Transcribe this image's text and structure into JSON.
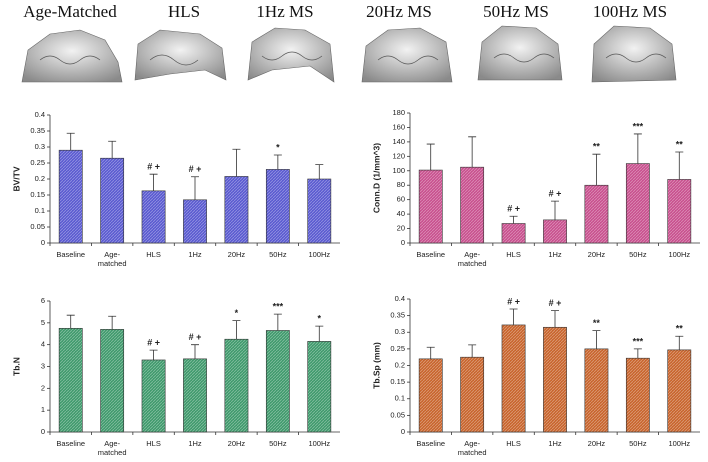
{
  "header": {
    "labels": [
      "Age-Matched",
      "HLS",
      "1Hz MS",
      "20Hz MS",
      "50Hz MS",
      "100Hz MS"
    ]
  },
  "chart_data": [
    {
      "type": "bar",
      "y_label": "BV/TV",
      "color": "#5a5ad0",
      "categories": [
        "Baseline",
        "Age-\nmatched",
        "HLS",
        "1Hz",
        "20Hz",
        "50Hz",
        "100Hz"
      ],
      "values": [
        0.29,
        0.265,
        0.163,
        0.135,
        0.208,
        0.23,
        0.2
      ],
      "errors": [
        0.053,
        0.053,
        0.052,
        0.072,
        0.085,
        0.045,
        0.045
      ],
      "annotations": [
        {
          "category": "HLS",
          "text": "# +"
        },
        {
          "category": "1Hz",
          "text": "# +"
        },
        {
          "category": "50Hz",
          "text": "*"
        }
      ],
      "ylim": [
        0,
        0.4
      ],
      "yticks": [
        0,
        0.05,
        0.1,
        0.15,
        0.2,
        0.25,
        0.3,
        0.35,
        0.4
      ]
    },
    {
      "type": "bar",
      "y_label": "Conn.D (1/mm^3)",
      "color": "#c8508e",
      "categories": [
        "Baseline",
        "Age-\nmatched",
        "HLS",
        "1Hz",
        "20Hz",
        "50Hz",
        "100Hz"
      ],
      "values": [
        101,
        105,
        27,
        32,
        80,
        110,
        88
      ],
      "errors": [
        36,
        42,
        10,
        26,
        43,
        41,
        38
      ],
      "annotations": [
        {
          "category": "HLS",
          "text": "# +"
        },
        {
          "category": "1Hz",
          "text": "# +"
        },
        {
          "category": "20Hz",
          "text": "**"
        },
        {
          "category": "50Hz",
          "text": "***"
        },
        {
          "category": "100Hz",
          "text": "**"
        }
      ],
      "ylim": [
        0,
        180
      ],
      "yticks": [
        0,
        20,
        40,
        60,
        80,
        100,
        120,
        140,
        160,
        180
      ]
    },
    {
      "type": "bar",
      "y_label": "Tb.N",
      "color": "#3f9a6c",
      "categories": [
        "Baseline",
        "Age-\nmatched",
        "HLS",
        "1Hz",
        "20Hz",
        "50Hz",
        "100Hz"
      ],
      "values": [
        4.75,
        4.7,
        3.3,
        3.35,
        4.25,
        4.65,
        4.15
      ],
      "errors": [
        0.6,
        0.6,
        0.45,
        0.65,
        0.85,
        0.75,
        0.7
      ],
      "annotations": [
        {
          "category": "HLS",
          "text": "# +"
        },
        {
          "category": "1Hz",
          "text": "# +"
        },
        {
          "category": "20Hz",
          "text": "*"
        },
        {
          "category": "50Hz",
          "text": "***"
        },
        {
          "category": "100Hz",
          "text": "*"
        }
      ],
      "ylim": [
        0,
        6
      ],
      "yticks": [
        0,
        1,
        2,
        3,
        4,
        5,
        6
      ]
    },
    {
      "type": "bar",
      "y_label": "Tb.Sp (mm)",
      "color": "#c8642c",
      "categories": [
        "Baseline",
        "Age-\nmatched",
        "HLS",
        "1Hz",
        "20Hz",
        "50Hz",
        "100Hz"
      ],
      "values": [
        0.22,
        0.225,
        0.322,
        0.315,
        0.25,
        0.222,
        0.247
      ],
      "errors": [
        0.035,
        0.037,
        0.048,
        0.05,
        0.055,
        0.028,
        0.041
      ],
      "annotations": [
        {
          "category": "HLS",
          "text": "# +"
        },
        {
          "category": "1Hz",
          "text": "# +"
        },
        {
          "category": "20Hz",
          "text": "**"
        },
        {
          "category": "50Hz",
          "text": "***"
        },
        {
          "category": "100Hz",
          "text": "**"
        }
      ],
      "ylim": [
        0,
        0.4
      ],
      "yticks": [
        0,
        0.05,
        0.1,
        0.15,
        0.2,
        0.25,
        0.3,
        0.35,
        0.4
      ]
    }
  ]
}
